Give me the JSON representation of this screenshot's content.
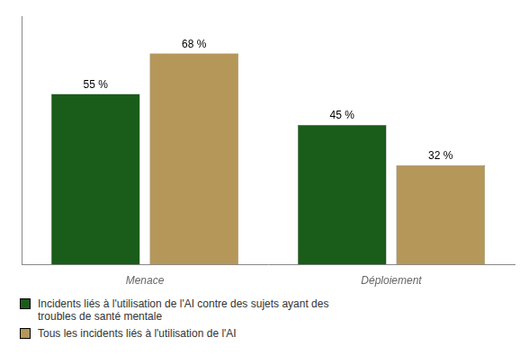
{
  "chart_data": {
    "type": "bar",
    "categories": [
      "Menace",
      "Déploiement"
    ],
    "series": [
      {
        "name": "Incidents liés à l'utilisation de l'AI contre des sujets ayant des\ntroubles de santé mentale",
        "color": "#1a5c1a",
        "values": [
          55,
          45
        ],
        "value_labels": [
          "55 %",
          "45 %"
        ]
      },
      {
        "name": "Tous les incidents liés à l'utilisation de l'AI",
        "color": "#b5975a",
        "values": [
          68,
          32
        ],
        "value_labels": [
          "68 %",
          "32 %"
        ]
      }
    ],
    "ylim": [
      0,
      80
    ],
    "grid": false,
    "tick_labels": "x",
    "data_labels": true,
    "legend": "lower left"
  }
}
